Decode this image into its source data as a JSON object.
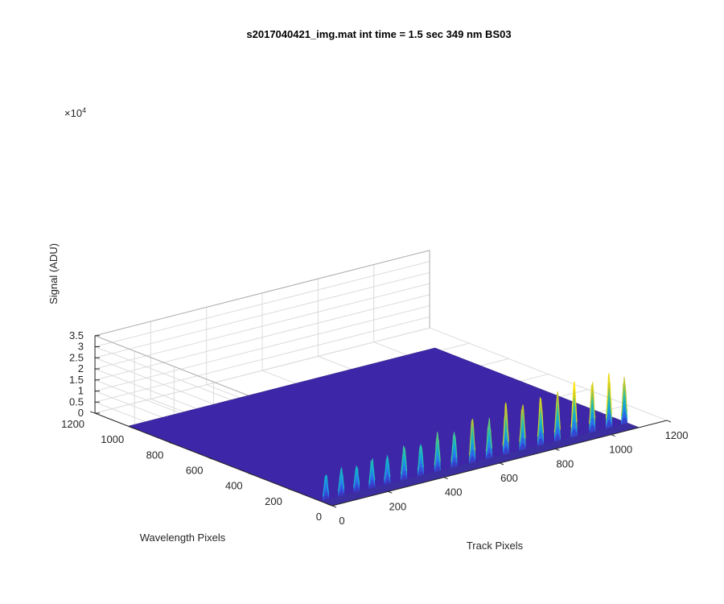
{
  "chart_data": {
    "type": "surface3d",
    "title": "s2017040421_img.mat int time = 1.5 sec  349 nm BS03",
    "xlabel": "Track Pixels",
    "ylabel": "Wavelength Pixels",
    "zlabel": "Signal (ADU)",
    "z_exponent_label": "×10",
    "z_exponent": "4",
    "xlim": [
      0,
      1200
    ],
    "ylim": [
      0,
      1200
    ],
    "zlim": [
      0,
      35000
    ],
    "x_ticks": [
      "0",
      "200",
      "400",
      "600",
      "800",
      "1000",
      "1200"
    ],
    "y_ticks": [
      "0",
      "200",
      "400",
      "600",
      "800",
      "1000",
      "1200"
    ],
    "z_ticks": [
      "0",
      "0.5",
      "1",
      "1.5",
      "2",
      "2.5",
      "3",
      "3.5"
    ],
    "grid": true,
    "colormap": "parula",
    "signal_region": {
      "wavelength_range": [
        0,
        60
      ],
      "track_range": [
        0,
        1100
      ]
    },
    "ridges": [
      {
        "track": 20,
        "peak": 12000
      },
      {
        "track": 75,
        "peak": 13500
      },
      {
        "track": 130,
        "peak": 13000
      },
      {
        "track": 185,
        "peak": 14500
      },
      {
        "track": 240,
        "peak": 13500
      },
      {
        "track": 300,
        "peak": 16500
      },
      {
        "track": 360,
        "peak": 15500
      },
      {
        "track": 420,
        "peak": 18500
      },
      {
        "track": 480,
        "peak": 17000
      },
      {
        "track": 545,
        "peak": 21000
      },
      {
        "track": 605,
        "peak": 19000
      },
      {
        "track": 665,
        "peak": 23500
      },
      {
        "track": 725,
        "peak": 22000
      },
      {
        "track": 790,
        "peak": 23500
      },
      {
        "track": 850,
        "peak": 22500
      },
      {
        "track": 910,
        "peak": 26000
      },
      {
        "track": 975,
        "peak": 23500
      },
      {
        "track": 1035,
        "peak": 25000
      },
      {
        "track": 1090,
        "peak": 22000
      }
    ],
    "colors": {
      "floor": "#3e26a8",
      "low": "#3e26a8",
      "mid_low": "#2c7bf2",
      "mid": "#11b0d6",
      "mid_high": "#3ec38e",
      "high": "#c2c22e",
      "top": "#f9e419"
    }
  }
}
